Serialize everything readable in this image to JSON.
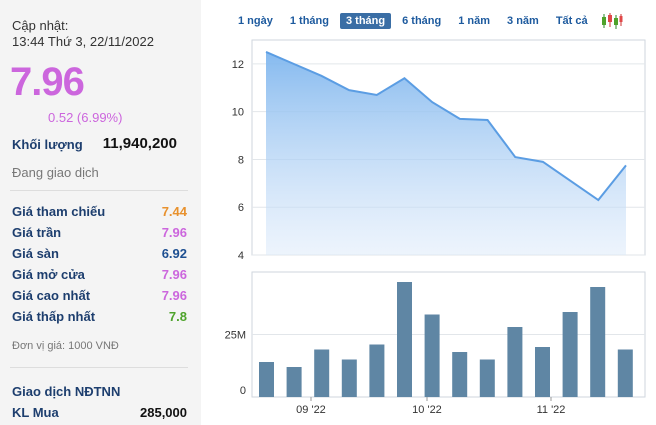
{
  "summary": {
    "update_label": "Cập nhật:",
    "update_time": "13:44 Thứ 3, 22/11/2022",
    "price": "7.96",
    "change": "0.52 (6.99%)",
    "volume_label": "Khối lượng",
    "volume_value": "11,940,200",
    "status": "Đang giao dịch"
  },
  "price_rows": [
    {
      "label": "Giá tham chiếu",
      "value": "7.44",
      "color": "#e8912d"
    },
    {
      "label": "Giá trần",
      "value": "7.96",
      "color": "#cc66dd"
    },
    {
      "label": "Giá sàn",
      "value": "6.92",
      "color": "#1d4f91"
    },
    {
      "label": "Giá mở cửa",
      "value": "7.96",
      "color": "#cc66dd"
    },
    {
      "label": "Giá cao nhất",
      "value": "7.96",
      "color": "#cc66dd"
    },
    {
      "label": "Giá thấp nhất",
      "value": "7.8",
      "color": "#4ea32b"
    }
  ],
  "unit_note": "Đơn vị giá: 1000 VNĐ",
  "foreign": {
    "title": "Giao dịch NĐTNN",
    "buy_label": "KL Mua",
    "buy_value": "285,000"
  },
  "tabs": [
    {
      "label": "1 ngày",
      "active": false
    },
    {
      "label": "1 tháng",
      "active": false
    },
    {
      "label": "3 tháng",
      "active": true
    },
    {
      "label": "6 tháng",
      "active": false
    },
    {
      "label": "1 năm",
      "active": false
    },
    {
      "label": "3 năm",
      "active": false
    },
    {
      "label": "Tất cả",
      "active": false
    }
  ],
  "chart_data": [
    {
      "type": "area",
      "series": [
        {
          "values": [
            12.5,
            12.0,
            11.5,
            10.9,
            10.7,
            11.4,
            10.4,
            9.7,
            9.65,
            8.1,
            7.9,
            7.1,
            6.3,
            7.75
          ]
        }
      ],
      "yticks": [
        4,
        6,
        8,
        10,
        12
      ],
      "ylim": [
        4,
        13
      ],
      "grid": true,
      "color": "#5b9de3"
    },
    {
      "type": "bar",
      "values": [
        14,
        12,
        19,
        15,
        21,
        46,
        33,
        18,
        15,
        28,
        20,
        34,
        44,
        19
      ],
      "xticks": [
        "09 '22",
        "10 '22",
        "11 '22"
      ],
      "yticks": [
        {
          "value": 0,
          "label": "0"
        },
        {
          "value": 25,
          "label": "25M"
        }
      ],
      "ylim": [
        0,
        50
      ],
      "grid": true,
      "color": "#5f86a4"
    }
  ]
}
